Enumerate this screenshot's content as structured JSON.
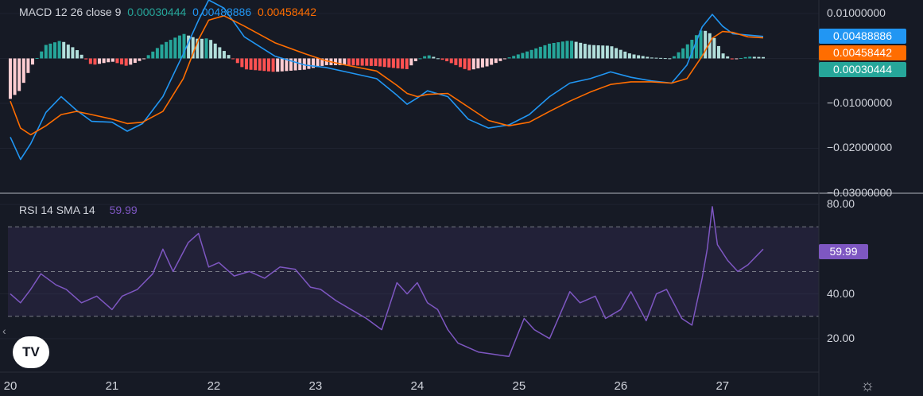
{
  "macd_legend": {
    "title": "MACD 12 26 close 9",
    "histogram_value": "0.00030444",
    "macd_value": "0.00488886",
    "signal_value": "0.00458442"
  },
  "rsi_legend": {
    "title": "RSI 14 SMA 14",
    "value": "59.99"
  },
  "colors": {
    "macd_line": "#2962ff",
    "signal_line": "#ff6d00",
    "hist_pos_strong": "#26a69a",
    "hist_pos_weak": "#b2dfdb",
    "hist_neg_strong": "#ff5252",
    "hist_neg_weak": "#ffcdd2",
    "rsi_line": "#7e57c2",
    "background": "#161a25"
  },
  "badges": {
    "macd": "0.00488886",
    "signal": "0.00458442",
    "histogram": "0.00030444",
    "rsi": "59.99"
  },
  "macd_axis": {
    "ticks": [
      "0.01000000",
      "−0.01000000",
      "−0.02000000",
      "−0.03000000"
    ]
  },
  "rsi_axis": {
    "ticks": [
      "80.00",
      "40.00",
      "20.00"
    ],
    "bands": [
      70,
      50,
      30
    ]
  },
  "x_axis": {
    "ticks": [
      "20",
      "21",
      "22",
      "23",
      "24",
      "25",
      "26",
      "27"
    ]
  },
  "icons": {
    "logo": "tradingview-logo",
    "gear": "gear-icon",
    "chevron": "chevron-left-icon"
  },
  "logo_text": "TV",
  "gear_glyph": "☼",
  "chevron_glyph": "‹",
  "chart_data": [
    {
      "type": "line",
      "name": "MACD 12 26 close 9",
      "x": [
        20.0,
        20.1,
        20.2,
        20.35,
        20.5,
        20.65,
        20.8,
        21.0,
        21.15,
        21.3,
        21.5,
        21.7,
        21.85,
        21.95,
        22.1,
        22.3,
        22.6,
        22.9,
        23.1,
        23.3,
        23.6,
        23.8,
        23.9,
        24.0,
        24.1,
        24.3,
        24.5,
        24.7,
        24.9,
        25.1,
        25.3,
        25.5,
        25.7,
        25.9,
        26.1,
        26.3,
        26.5,
        26.65,
        26.8,
        26.9,
        27.0,
        27.1,
        27.25,
        27.4
      ],
      "series": [
        {
          "name": "MACD",
          "values": [
            -0.0175,
            -0.0225,
            -0.019,
            -0.012,
            -0.0085,
            -0.0115,
            -0.014,
            -0.0142,
            -0.0162,
            -0.0145,
            -0.0085,
            0.001,
            0.0085,
            0.013,
            0.0112,
            0.0048,
            0.0005,
            -0.0015,
            -0.002,
            -0.003,
            -0.0045,
            -0.0082,
            -0.0102,
            -0.0088,
            -0.0072,
            -0.0085,
            -0.0135,
            -0.0155,
            -0.0148,
            -0.0125,
            -0.0085,
            -0.0055,
            -0.0045,
            -0.003,
            -0.0042,
            -0.005,
            -0.0055,
            -0.0015,
            0.007,
            0.0098,
            0.0072,
            0.0055,
            0.0052,
            0.00488886
          ]
        },
        {
          "name": "Signal",
          "values": [
            -0.0095,
            -0.0155,
            -0.017,
            -0.015,
            -0.0125,
            -0.0118,
            -0.0125,
            -0.0135,
            -0.0145,
            -0.0142,
            -0.0118,
            -0.0045,
            0.0042,
            0.0085,
            0.0095,
            0.0072,
            0.0035,
            0.001,
            -0.0005,
            -0.0015,
            -0.0028,
            -0.006,
            -0.0078,
            -0.0085,
            -0.008,
            -0.0078,
            -0.0108,
            -0.0138,
            -0.015,
            -0.0142,
            -0.0118,
            -0.0095,
            -0.0075,
            -0.0058,
            -0.0052,
            -0.0052,
            -0.0055,
            -0.0045,
            0.0005,
            0.0045,
            0.006,
            0.0058,
            0.0048,
            0.00458442
          ]
        }
      ],
      "histogram": [
        -0.009,
        -0.007,
        -0.002,
        0.003,
        0.004,
        0.002,
        -0.0015,
        -0.0007,
        -0.0017,
        -0.0003,
        0.0033,
        0.0055,
        0.0043,
        0.0045,
        0.0017,
        -0.0024,
        -0.003,
        -0.0025,
        -0.0015,
        -0.0015,
        -0.0017,
        -0.0022,
        -0.0024,
        -0.0003,
        0.0008,
        -0.0007,
        -0.0027,
        -0.0017,
        0.0002,
        0.0017,
        0.0033,
        0.004,
        0.003,
        0.0028,
        0.001,
        0.0002,
        0.0,
        0.003,
        0.0065,
        0.0053,
        0.0012,
        -0.0003,
        0.0004,
        0.00030444
      ],
      "ylim": [
        -0.03,
        0.013
      ]
    },
    {
      "type": "line",
      "name": "RSI 14 SMA 14",
      "x": [
        20.0,
        20.1,
        20.2,
        20.3,
        20.45,
        20.55,
        20.7,
        20.85,
        21.0,
        21.1,
        21.25,
        21.4,
        21.5,
        21.6,
        21.75,
        21.85,
        21.95,
        22.05,
        22.2,
        22.35,
        22.5,
        22.65,
        22.8,
        22.95,
        23.05,
        23.2,
        23.35,
        23.5,
        23.65,
        23.8,
        23.9,
        24.0,
        24.1,
        24.2,
        24.3,
        24.4,
        24.5,
        24.6,
        24.75,
        24.9,
        25.05,
        25.15,
        25.3,
        25.5,
        25.6,
        25.75,
        25.85,
        26.0,
        26.1,
        26.25,
        26.35,
        26.45,
        26.6,
        26.7,
        26.8,
        26.85,
        26.9,
        26.95,
        27.05,
        27.15,
        27.25,
        27.4
      ],
      "values": [
        40,
        36,
        42,
        49,
        44,
        42,
        36,
        39,
        33,
        39,
        42,
        49,
        60,
        50,
        63,
        67,
        52,
        54,
        48,
        50,
        47,
        52,
        51,
        43,
        42,
        37,
        33,
        29,
        24,
        45,
        40,
        45,
        36,
        33,
        24,
        18,
        16,
        14,
        13,
        12,
        29,
        24,
        20,
        41,
        36,
        39,
        29,
        33,
        41,
        28,
        40,
        42,
        29,
        26,
        47,
        60,
        79,
        62,
        55,
        50,
        53,
        59.99
      ],
      "ylim": [
        5,
        85
      ]
    }
  ]
}
